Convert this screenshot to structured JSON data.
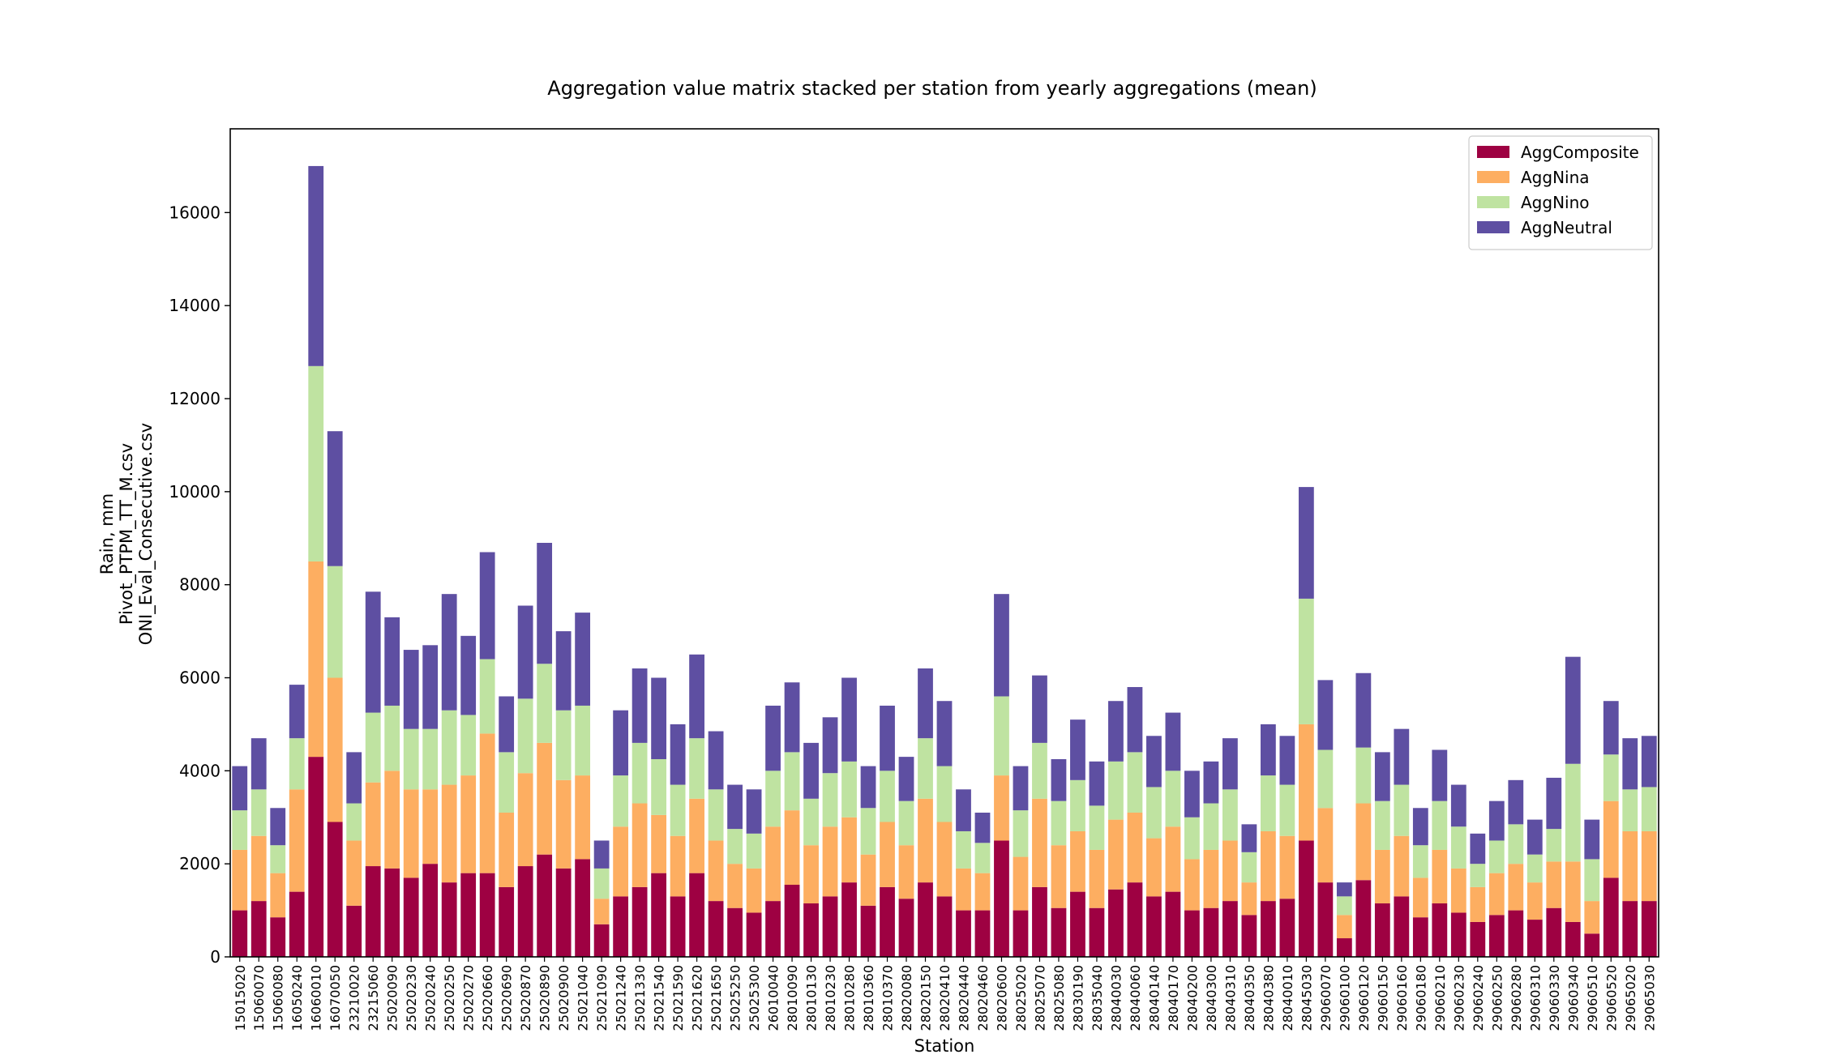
{
  "chart_data": {
    "type": "bar",
    "stacked": true,
    "title": "Aggregation value matrix stacked per station from yearly aggregations (mean)",
    "xlabel": "Station",
    "ylabel_lines": [
      "Rain, mm",
      "Pivot_PTPM_TT_M.csv",
      "ONI_Eval_Consecutive.csv"
    ],
    "ylim": [
      0,
      17800
    ],
    "yticks": [
      0,
      2000,
      4000,
      6000,
      8000,
      10000,
      12000,
      14000,
      16000
    ],
    "legend_position": "top-right",
    "grid": false,
    "categories": [
      "15015020",
      "15060070",
      "15060080",
      "16050240",
      "16060010",
      "16070050",
      "23210020",
      "23215060",
      "25020090",
      "25020230",
      "25020240",
      "25020250",
      "25020270",
      "25020660",
      "25020690",
      "25020870",
      "25020890",
      "25020900",
      "25021040",
      "25021090",
      "25021240",
      "25021330",
      "25021540",
      "25021590",
      "25021620",
      "25021650",
      "25025250",
      "25025300",
      "26010040",
      "28010090",
      "28010130",
      "28010230",
      "28010280",
      "28010360",
      "28010370",
      "28020080",
      "28020150",
      "28020410",
      "28020440",
      "28020460",
      "28020600",
      "28025020",
      "28025070",
      "28025080",
      "28030190",
      "28035040",
      "28040030",
      "28040060",
      "28040140",
      "28040170",
      "28040200",
      "28040300",
      "28040310",
      "28040350",
      "28040380",
      "28040010",
      "28045030",
      "29060070",
      "29060100",
      "29060120",
      "29060150",
      "29060160",
      "29060180",
      "29060210",
      "29060230",
      "29060240",
      "29060250",
      "29060280",
      "29060310",
      "29060330",
      "29060340",
      "29060510",
      "29060520",
      "29065020",
      "29065030"
    ],
    "series": [
      {
        "name": "AggComposite",
        "color": "#9e0142",
        "values": [
          1000,
          1200,
          850,
          1400,
          4300,
          2900,
          1100,
          1950,
          1900,
          1700,
          2000,
          1600,
          1800,
          1800,
          1500,
          1950,
          2200,
          1900,
          2100,
          700,
          1300,
          1500,
          1800,
          1300,
          1800,
          1200,
          1050,
          950,
          1200,
          1550,
          1150,
          1300,
          1600,
          1100,
          1500,
          1250,
          1600,
          1300,
          1000,
          1000,
          2500,
          1000,
          1500,
          1050,
          1400,
          1050,
          1450,
          1600,
          1300,
          1400,
          1000,
          1050,
          1200,
          900,
          1200,
          1250,
          2500,
          1600,
          400,
          1650,
          1150,
          1300,
          850,
          1150,
          950,
          750,
          900,
          1000,
          800,
          1050,
          750,
          500,
          1700,
          1200,
          1200
        ]
      },
      {
        "name": "AggNina",
        "color": "#fdae61",
        "values": [
          1300,
          1400,
          950,
          2200,
          4200,
          3100,
          1400,
          1800,
          2100,
          1900,
          1600,
          2100,
          2100,
          3000,
          1600,
          2000,
          2400,
          1900,
          1800,
          550,
          1500,
          1800,
          1250,
          1300,
          1600,
          1300,
          950,
          950,
          1600,
          1600,
          1250,
          1500,
          1400,
          1100,
          1400,
          1150,
          1800,
          1600,
          900,
          800,
          1400,
          1150,
          1900,
          1350,
          1300,
          1250,
          1500,
          1500,
          1250,
          1400,
          1100,
          1250,
          1300,
          700,
          1500,
          1350,
          2500,
          1600,
          500,
          1650,
          1150,
          1300,
          850,
          1150,
          950,
          750,
          900,
          1000,
          800,
          1000,
          1300,
          700,
          1650,
          1500,
          1500
        ]
      },
      {
        "name": "AggNino",
        "color": "#bfe3a1",
        "values": [
          850,
          1000,
          600,
          1100,
          4200,
          2400,
          800,
          1500,
          1400,
          1300,
          1300,
          1600,
          1300,
          1600,
          1300,
          1600,
          1700,
          1500,
          1500,
          650,
          1100,
          1300,
          1200,
          1100,
          1300,
          1100,
          750,
          750,
          1200,
          1250,
          1000,
          1150,
          1200,
          1000,
          1100,
          950,
          1300,
          1200,
          800,
          650,
          1700,
          1000,
          1200,
          950,
          1100,
          950,
          1250,
          1300,
          1100,
          1200,
          900,
          1000,
          1100,
          650,
          1200,
          1100,
          2700,
          1250,
          400,
          1200,
          1050,
          1100,
          700,
          1050,
          900,
          500,
          700,
          850,
          600,
          700,
          2100,
          900,
          1000,
          900,
          950
        ]
      },
      {
        "name": "AggNeutral",
        "color": "#5e4fa2",
        "values": [
          950,
          1100,
          800,
          1150,
          4300,
          2900,
          1100,
          2600,
          1900,
          1700,
          1800,
          2500,
          1700,
          2300,
          1200,
          2000,
          2600,
          1700,
          2000,
          600,
          1400,
          1600,
          1750,
          1300,
          1800,
          1250,
          950,
          950,
          1400,
          1500,
          1200,
          1200,
          1800,
          900,
          1400,
          950,
          1500,
          1400,
          900,
          650,
          2200,
          950,
          1450,
          900,
          1300,
          950,
          1300,
          1400,
          1100,
          1250,
          1000,
          900,
          1100,
          600,
          1100,
          1050,
          2400,
          1500,
          300,
          1600,
          1050,
          1200,
          800,
          1100,
          900,
          650,
          850,
          950,
          750,
          1100,
          2300,
          850,
          1150,
          1100,
          1100
        ]
      }
    ]
  }
}
